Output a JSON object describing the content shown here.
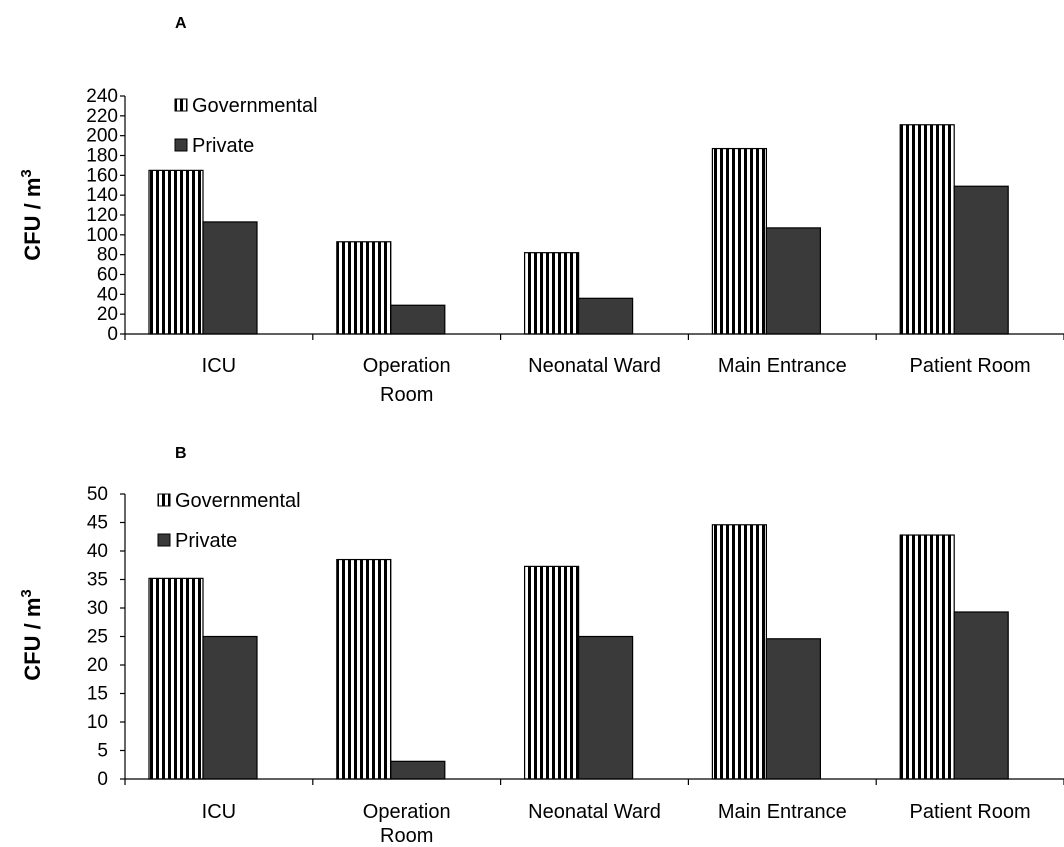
{
  "chart_data": [
    {
      "panel": "A",
      "type": "bar",
      "categories": [
        "ICU",
        "Operation Room",
        "Neonatal Ward",
        "Main Entrance",
        "Patient Room"
      ],
      "category_lines": [
        [
          "ICU"
        ],
        [
          "Operation",
          "Room"
        ],
        [
          "Neonatal Ward"
        ],
        [
          "Main Entrance"
        ],
        [
          "Patient Room"
        ]
      ],
      "series": [
        {
          "name": "Governmental",
          "values": [
            165,
            93,
            82,
            187,
            211
          ],
          "style": "vertical-stripes"
        },
        {
          "name": "Private",
          "values": [
            113,
            29,
            36,
            107,
            149
          ],
          "style": "solid"
        }
      ],
      "ylabel": "CFU / m",
      "ylabel_sup": "3",
      "ylim": [
        0,
        240
      ],
      "yticks": [
        0,
        20,
        40,
        60,
        80,
        100,
        120,
        140,
        160,
        180,
        200,
        220,
        240
      ],
      "legend_position": "top-left",
      "grid": false
    },
    {
      "panel": "B",
      "type": "bar",
      "categories": [
        "ICU",
        "Operation Room",
        "Neonatal Ward",
        "Main Entrance",
        "Patient Room"
      ],
      "category_lines": [
        [
          "ICU"
        ],
        [
          "Operation",
          "Room"
        ],
        [
          "Neonatal Ward"
        ],
        [
          "Main Entrance"
        ],
        [
          "Patient Room"
        ]
      ],
      "series": [
        {
          "name": "Governmental",
          "values": [
            35.2,
            38.5,
            37.3,
            44.6,
            42.8
          ],
          "style": "vertical-stripes"
        },
        {
          "name": "Private",
          "values": [
            25,
            3.1,
            25,
            24.6,
            29.3
          ],
          "style": "solid"
        }
      ],
      "ylabel": "CFU / m",
      "ylabel_sup": "3",
      "ylim": [
        0,
        50
      ],
      "yticks": [
        0,
        5,
        10,
        15,
        20,
        25,
        30,
        35,
        40,
        45,
        50
      ],
      "legend_position": "top-left",
      "grid": false
    }
  ],
  "colors": {
    "private_fill": "#3a3a3a",
    "stripe_dark": "#000000",
    "stripe_light": "#ffffff",
    "axis": "#000000"
  }
}
